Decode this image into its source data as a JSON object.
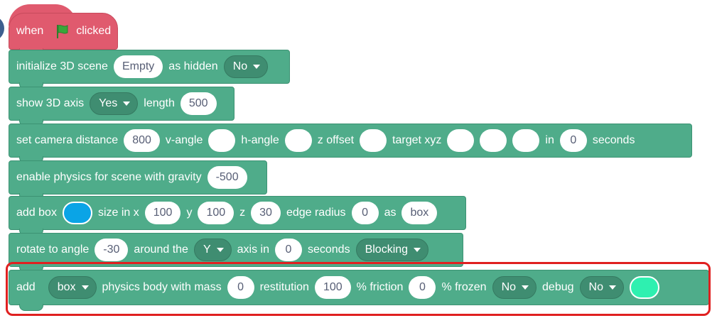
{
  "hat_block": {
    "when": "when",
    "clicked": "clicked"
  },
  "init_block": {
    "label": "initialize 3D scene",
    "scene": "Empty",
    "hidden_label": "as hidden",
    "hidden_value": "No"
  },
  "axis_block": {
    "label": "show 3D axis",
    "axis_value": "Yes",
    "length_label": "length",
    "length": "500"
  },
  "camera_block": {
    "label": "set camera distance",
    "distance": "800",
    "vangle_label": "v-angle",
    "hangle_label": "h-angle",
    "zoffset_label": "z offset",
    "target_label": "target xyz",
    "in_label": "in",
    "seconds_value": "0",
    "seconds_label": "seconds"
  },
  "physics_block": {
    "label": "enable physics for scene with gravity",
    "gravity": "-500"
  },
  "box_block": {
    "label": "add box",
    "color": "#0aa4e6",
    "size_label": "size in x",
    "x": "100",
    "y_label": "y",
    "y": "100",
    "z_label": "z",
    "z": "30",
    "edge_label": "edge radius",
    "edge": "0",
    "as_label": "as",
    "name": "box"
  },
  "rotate_block": {
    "label": "rotate to angle",
    "angle": "-30",
    "around_label": "around the",
    "axis": "Y",
    "axis_in_label": "axis in",
    "seconds_value": "0",
    "seconds_label": "seconds",
    "mode": "Blocking"
  },
  "body_block": {
    "label": "add",
    "object": "box",
    "mass_label": "physics body with mass",
    "mass": "0",
    "restitution_label": "restitution",
    "restitution": "100",
    "friction_label": "% friction",
    "friction": "0",
    "frozen_label": "% frozen",
    "frozen": "No",
    "debug_label": "debug",
    "debug": "No",
    "debug_color": "#2ef0b0"
  },
  "colors": {
    "hat": "#e05a6e",
    "block": "#4fac8a",
    "highlight": "#e02020",
    "flag": "#3aa63a"
  }
}
